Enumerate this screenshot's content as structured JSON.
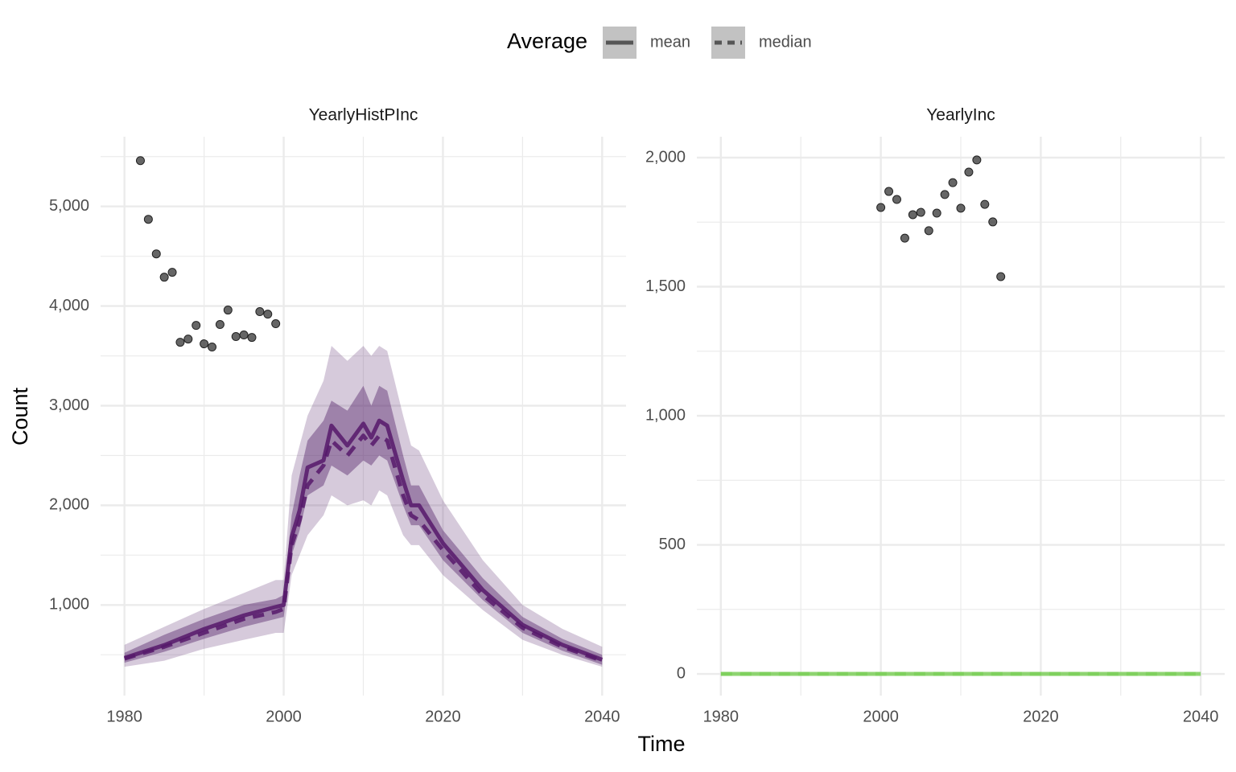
{
  "legend_title": "Average",
  "xlabel": "Time",
  "ylabel": "Count",
  "chart_data": [
    {
      "type": "line",
      "title": "YearlyHistPInc",
      "xlim": [
        1977,
        2043
      ],
      "ylim": [
        90,
        5700
      ],
      "xticks": [
        1980,
        2000,
        2020,
        2040
      ],
      "yticks": [
        {
          "value": 1000,
          "label": "1,000"
        },
        {
          "value": 2000,
          "label": "2,000"
        },
        {
          "value": 3000,
          "label": "3,000"
        },
        {
          "value": 4000,
          "label": "4,000"
        },
        {
          "value": 5000,
          "label": "5,000"
        }
      ],
      "grid": true,
      "points": {
        "color": "#333333",
        "x": [
          1982,
          1983,
          1984,
          1985,
          1986,
          1987,
          1988,
          1989,
          1990,
          1991,
          1992,
          1993,
          1994,
          1995,
          1996,
          1997,
          1998,
          1999
        ],
        "values": [
          5460,
          4871,
          4524,
          4290,
          4339,
          3637,
          3669,
          3806,
          3621,
          3589,
          3815,
          3960,
          3694,
          3710,
          3685,
          3944,
          3919,
          3823
        ]
      },
      "x": [
        1980,
        1985,
        1990,
        1995,
        1999,
        2000,
        2001,
        2002,
        2003,
        2005,
        2006,
        2008,
        2010,
        2011,
        2012,
        2013,
        2015,
        2016,
        2017,
        2020,
        2025,
        2030,
        2035,
        2040
      ],
      "bands": [
        {
          "color": "#5c2a6e",
          "opacity": 0.25,
          "lower": [
            380,
            440,
            560,
            650,
            720,
            720,
            1300,
            1500,
            1700,
            1900,
            2100,
            2000,
            2050,
            2000,
            2150,
            2100,
            1700,
            1600,
            1600,
            1300,
            950,
            650,
            500,
            380
          ],
          "upper": [
            600,
            780,
            960,
            1120,
            1250,
            1250,
            2300,
            2600,
            2900,
            3250,
            3600,
            3450,
            3600,
            3500,
            3600,
            3550,
            2900,
            2600,
            2550,
            2050,
            1450,
            1000,
            760,
            580
          ]
        },
        {
          "color": "#5c2a6e",
          "opacity": 0.45,
          "lower": [
            420,
            530,
            660,
            780,
            860,
            880,
            1500,
            1750,
            2100,
            2200,
            2400,
            2300,
            2450,
            2400,
            2500,
            2450,
            2000,
            1800,
            1800,
            1450,
            1050,
            720,
            540,
            400
          ],
          "upper": [
            520,
            700,
            860,
            1000,
            1060,
            1100,
            1900,
            2300,
            2650,
            2850,
            3050,
            2950,
            3200,
            3000,
            3200,
            3150,
            2500,
            2200,
            2200,
            1750,
            1270,
            880,
            660,
            500
          ]
        }
      ],
      "series": [
        {
          "name": "mean",
          "color": "#56196b",
          "linetype": "solid",
          "values": [
            468,
            597,
            758,
            895,
            980,
            1000,
            1680,
            1950,
            2380,
            2450,
            2800,
            2600,
            2820,
            2680,
            2850,
            2800,
            2250,
            2000,
            2000,
            1620,
            1150,
            800,
            600,
            450
          ]
        },
        {
          "name": "median",
          "color": "#56196b",
          "linetype": "dashed",
          "values": [
            460,
            580,
            720,
            860,
            930,
            960,
            1600,
            1850,
            2200,
            2400,
            2650,
            2500,
            2700,
            2600,
            2700,
            2650,
            2100,
            1900,
            1850,
            1550,
            1100,
            770,
            580,
            440
          ]
        }
      ]
    },
    {
      "type": "line",
      "title": "YearlyInc",
      "xlim": [
        1977,
        2043
      ],
      "ylim": [
        -84,
        2081
      ],
      "xticks": [
        1980,
        2000,
        2020,
        2040
      ],
      "yticks": [
        0,
        500,
        {
          "value": 1000,
          "label": "1,000"
        },
        {
          "value": 1500,
          "label": "1,500"
        },
        {
          "value": 2000,
          "label": "2,000"
        }
      ],
      "grid": true,
      "points": {
        "color": "#333333",
        "x": [
          2000,
          2001,
          2002,
          2003,
          2004,
          2005,
          2006,
          2007,
          2008,
          2009,
          2010,
          2011,
          2012,
          2013,
          2014,
          2015
        ],
        "values": [
          1807,
          1869,
          1838,
          1688,
          1779,
          1788,
          1717,
          1785,
          1857,
          1903,
          1804,
          1944,
          1991,
          1819,
          1751,
          1539
        ]
      },
      "x": [
        1980,
        2040
      ],
      "bands": [],
      "series": [
        {
          "name": "mean",
          "color": "#7ccf5a",
          "linetype": "solid",
          "values": [
            0,
            0
          ]
        },
        {
          "name": "median",
          "color": "#7ccf5a",
          "linetype": "dashed",
          "values": [
            0,
            0
          ]
        }
      ]
    }
  ]
}
